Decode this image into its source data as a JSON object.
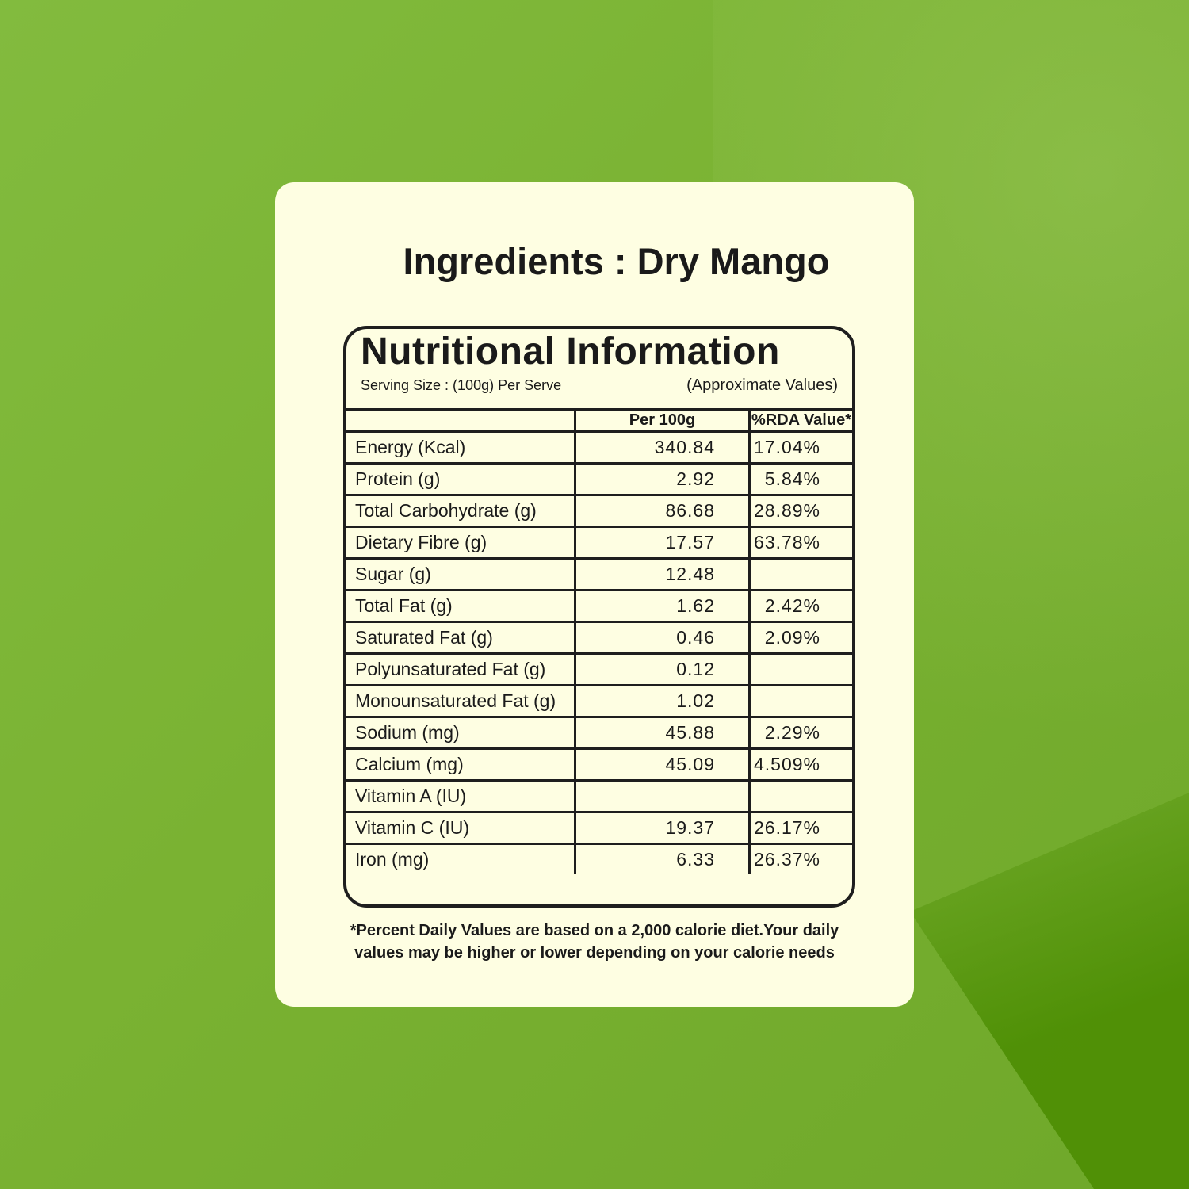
{
  "ingredients_title": "Ingredients : Dry Mango",
  "panel": {
    "title": "Nutritional Information",
    "serving_size": "Serving Size : (100g) Per Serve",
    "approximate": "(Approximate Values)",
    "columns": [
      "",
      "Per 100g",
      "%RDA Value*"
    ],
    "rows": [
      {
        "nutrient": "Energy (Kcal)",
        "per100g": "340.84",
        "rda": "17.04%"
      },
      {
        "nutrient": "Protein (g)",
        "per100g": "2.92",
        "rda": "5.84%"
      },
      {
        "nutrient": "Total Carbohydrate (g)",
        "per100g": "86.68",
        "rda": "28.89%"
      },
      {
        "nutrient": "Dietary Fibre (g)",
        "per100g": "17.57",
        "rda": "63.78%"
      },
      {
        "nutrient": "Sugar (g)",
        "per100g": "12.48",
        "rda": ""
      },
      {
        "nutrient": "Total Fat (g)",
        "per100g": "1.62",
        "rda": "2.42%"
      },
      {
        "nutrient": "Saturated Fat (g)",
        "per100g": "0.46",
        "rda": "2.09%"
      },
      {
        "nutrient": "Polyunsaturated Fat (g)",
        "per100g": "0.12",
        "rda": ""
      },
      {
        "nutrient": "Monounsaturated Fat (g)",
        "per100g": "1.02",
        "rda": ""
      },
      {
        "nutrient": "Sodium (mg)",
        "per100g": "45.88",
        "rda": "2.29%"
      },
      {
        "nutrient": "Calcium (mg)",
        "per100g": "45.09",
        "rda": "4.509%"
      },
      {
        "nutrient": "Vitamin A (IU)",
        "per100g": "",
        "rda": ""
      },
      {
        "nutrient": "Vitamin C (IU)",
        "per100g": "19.37",
        "rda": "26.17%"
      },
      {
        "nutrient": "Iron (mg)",
        "per100g": "6.33",
        "rda": "26.37%"
      }
    ]
  },
  "footnote_line1": "*Percent Daily Values are based on a 2,000 calorie diet.Your daily",
  "footnote_line2": "values may be higher or lower depending on your calorie needs",
  "colors": {
    "background": "#7ab232",
    "card": "#fefee2",
    "text": "#1a1a1a"
  }
}
